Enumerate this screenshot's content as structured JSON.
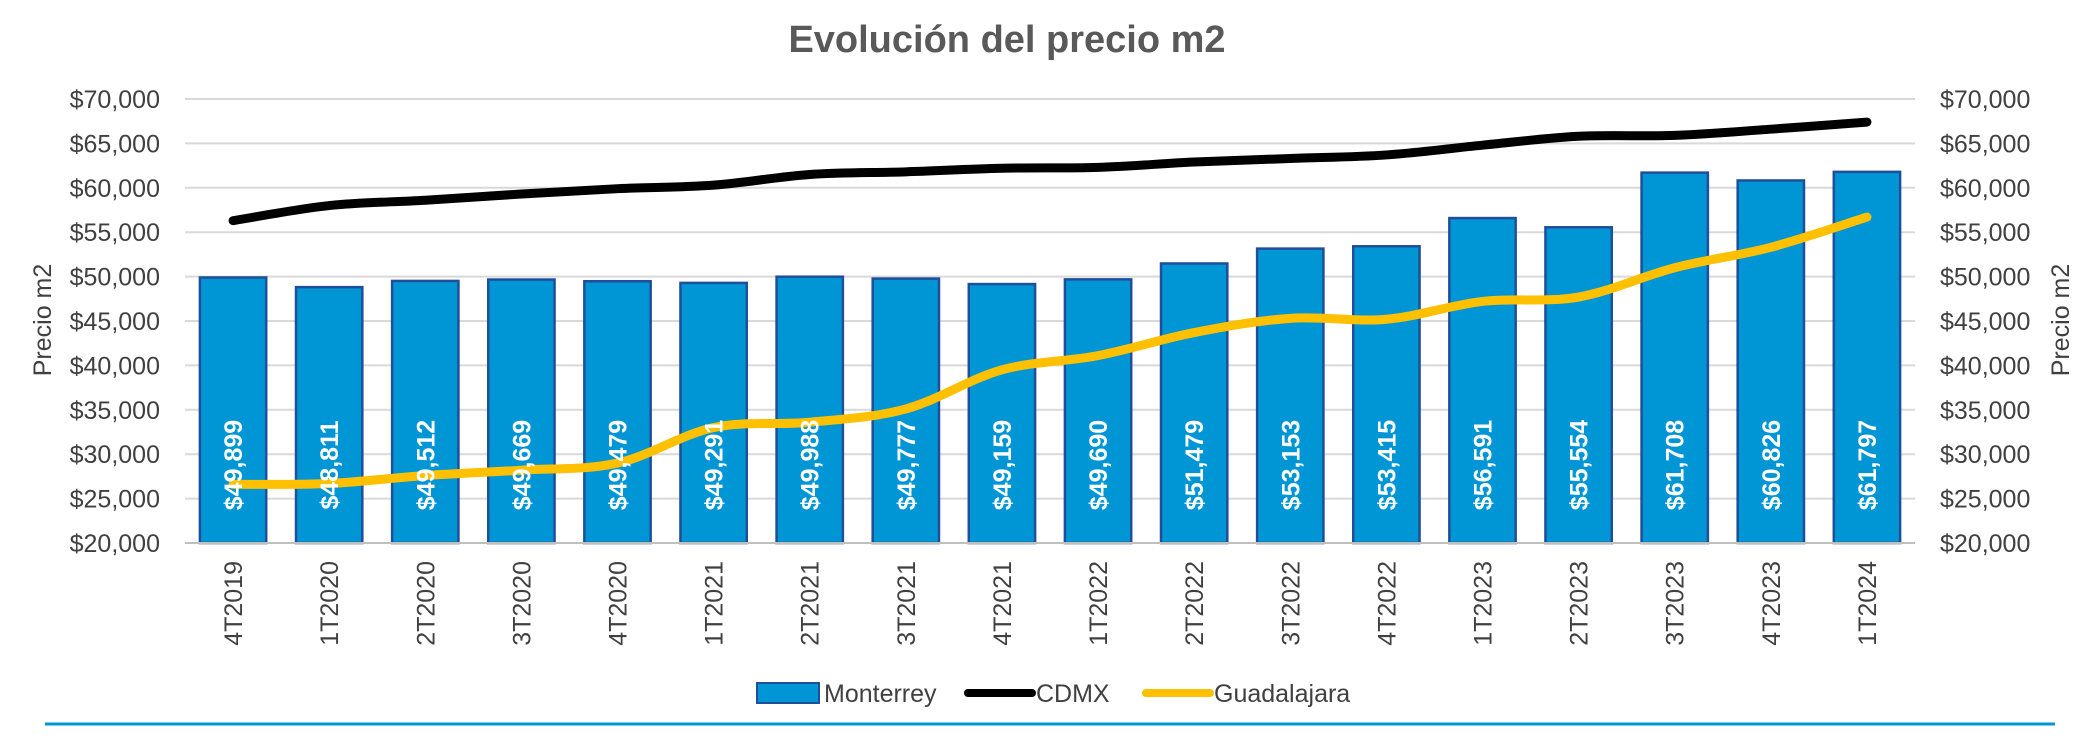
{
  "chart_data": {
    "type": "bar",
    "title": "Evolución del precio m2",
    "categories": [
      "4T2019",
      "1T2020",
      "2T2020",
      "3T2020",
      "4T2020",
      "1T2021",
      "2T2021",
      "3T2021",
      "4T2021",
      "1T2022",
      "2T2022",
      "3T2022",
      "4T2022",
      "1T2023",
      "2T2023",
      "3T2023",
      "4T2023",
      "1T2024"
    ],
    "series": [
      {
        "name": "Monterrey",
        "type": "bar",
        "color": "#0096D6",
        "values": [
          49899,
          48811,
          49512,
          49669,
          49479,
          49291,
          49988,
          49777,
          49159,
          49690,
          51479,
          53153,
          53415,
          56591,
          55554,
          61708,
          60826,
          61797
        ],
        "labels": [
          "$49,899",
          "$48,811",
          "$49,512",
          "$49,669",
          "$49,479",
          "$49,291",
          "$49,988",
          "$49,777",
          "$49,159",
          "$49,690",
          "$51,479",
          "$53,153",
          "$53,415",
          "$56,591",
          "$55,554",
          "$61,708",
          "$60,826",
          "$61,797"
        ]
      },
      {
        "name": "CDMX",
        "type": "line",
        "color": "#000000",
        "values": [
          56300,
          58000,
          58600,
          59300,
          59900,
          60300,
          61500,
          61800,
          62200,
          62300,
          62900,
          63300,
          63700,
          64800,
          65800,
          65900,
          66600,
          67400
        ]
      },
      {
        "name": "Guadalajara",
        "type": "line",
        "color": "#FFC000",
        "values": [
          26600,
          26700,
          27600,
          28200,
          29000,
          33000,
          33600,
          35100,
          39500,
          41100,
          43700,
          45300,
          45200,
          47200,
          47700,
          51000,
          53300,
          56700
        ]
      }
    ],
    "ylabel": "Precio m2",
    "y2label": "Precio m2",
    "ylim": [
      20000,
      70000
    ],
    "ytick_values": [
      20000,
      25000,
      30000,
      35000,
      40000,
      45000,
      50000,
      55000,
      60000,
      65000,
      70000
    ],
    "ytick_labels": [
      "$20,000",
      "$25,000",
      "$30,000",
      "$35,000",
      "$40,000",
      "$45,000",
      "$50,000",
      "$55,000",
      "$60,000",
      "$65,000",
      "$70,000"
    ],
    "grid": true,
    "legend": "bottom",
    "accent_rule_color": "#0096D6"
  }
}
